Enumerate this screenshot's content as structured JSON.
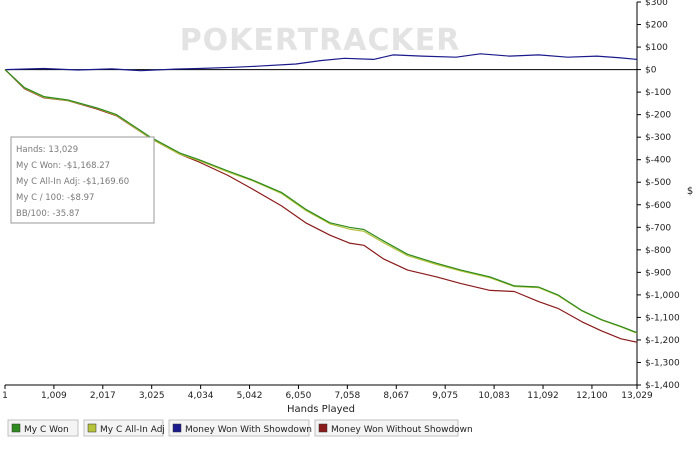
{
  "watermark": "POKERTRACKER",
  "chart_data": {
    "type": "line",
    "xlabel": "Hands Played",
    "ylabel": "$",
    "xlim": [
      1,
      13029
    ],
    "ylim": [
      -1400,
      300
    ],
    "x_ticks": [
      1,
      1009,
      2017,
      3025,
      4034,
      5042,
      6050,
      7058,
      8067,
      9075,
      10083,
      11092,
      12100,
      13029
    ],
    "x_tick_labels": [
      "1",
      "1,009",
      "2,017",
      "3,025",
      "4,034",
      "5,042",
      "6,050",
      "7,058",
      "8,067",
      "9,075",
      "10,083",
      "11,092",
      "12,100",
      "13,029"
    ],
    "y_ticks": [
      300,
      200,
      100,
      0,
      -100,
      -200,
      -300,
      -400,
      -500,
      -600,
      -700,
      -800,
      -900,
      -1000,
      -1100,
      -1200,
      -1300,
      -1400
    ],
    "y_tick_labels": [
      "$300",
      "$200",
      "$100",
      "$0",
      "$-100",
      "$-200",
      "$-300",
      "$-400",
      "$-500",
      "$-600",
      "$-700",
      "$-800",
      "$-900",
      "$-1,000",
      "$-1,100",
      "$-1,200",
      "$-1,300",
      "$-1,400"
    ],
    "legend_position": "bottom",
    "stats_box": {
      "lines": [
        "Hands: 13,029",
        "My C Won: -$1,168.27",
        "My C All-In Adj: -$1,169.60",
        "My C / 100: -$8.97",
        "BB/100: -35.87"
      ]
    },
    "series": [
      {
        "name": "My C Won",
        "color": "#2e8b1e",
        "x": [
          1,
          400,
          800,
          1300,
          1900,
          2300,
          3000,
          3600,
          4000,
          4600,
          5100,
          5700,
          6200,
          6700,
          7100,
          7400,
          7800,
          8300,
          8900,
          9400,
          10000,
          10500,
          11000,
          11400,
          11900,
          12300,
          12700,
          13029
        ],
        "y": [
          0,
          -80,
          -120,
          -135,
          -170,
          -200,
          -300,
          -370,
          -400,
          -450,
          -490,
          -545,
          -620,
          -680,
          -700,
          -710,
          -760,
          -820,
          -860,
          -890,
          -920,
          -960,
          -965,
          -1000,
          -1070,
          -1110,
          -1140,
          -1168
        ]
      },
      {
        "name": "My C All-In Adj",
        "color": "#b5c23a",
        "x": [
          1,
          400,
          800,
          1300,
          1900,
          2300,
          3000,
          3600,
          4000,
          4600,
          5100,
          5700,
          6200,
          6700,
          7100,
          7400,
          7800,
          8300,
          8900,
          9400,
          10000,
          10500,
          11000,
          11400,
          11900,
          12300,
          12700,
          13029
        ],
        "y": [
          0,
          -82,
          -123,
          -137,
          -172,
          -203,
          -305,
          -375,
          -404,
          -455,
          -493,
          -550,
          -625,
          -685,
          -708,
          -718,
          -768,
          -826,
          -865,
          -894,
          -924,
          -963,
          -968,
          -1003,
          -1072,
          -1112,
          -1142,
          -1170
        ]
      },
      {
        "name": "Money Won With Showdown",
        "color": "#1a1a8c",
        "x": [
          1,
          800,
          1500,
          2200,
          2800,
          3500,
          4000,
          4700,
          5200,
          6000,
          6500,
          7000,
          7600,
          8000,
          8600,
          9300,
          9800,
          10400,
          11000,
          11600,
          12200,
          12700,
          13029
        ],
        "y": [
          0,
          5,
          -2,
          3,
          -5,
          2,
          5,
          10,
          15,
          25,
          40,
          50,
          45,
          65,
          60,
          55,
          70,
          60,
          65,
          55,
          60,
          52,
          45
        ]
      },
      {
        "name": "Money Won Without Showdown",
        "color": "#8b1a1a",
        "x": [
          1,
          400,
          800,
          1300,
          1900,
          2300,
          3000,
          3600,
          4000,
          4600,
          5100,
          5700,
          6200,
          6700,
          7100,
          7400,
          7800,
          8300,
          8900,
          9400,
          10000,
          10500,
          11000,
          11400,
          11900,
          12300,
          12700,
          13029
        ],
        "y": [
          0,
          -85,
          -125,
          -138,
          -175,
          -205,
          -305,
          -375,
          -410,
          -470,
          -530,
          -605,
          -680,
          -735,
          -770,
          -780,
          -840,
          -890,
          -920,
          -950,
          -980,
          -985,
          -1030,
          -1060,
          -1120,
          -1160,
          -1195,
          -1210
        ]
      }
    ]
  }
}
